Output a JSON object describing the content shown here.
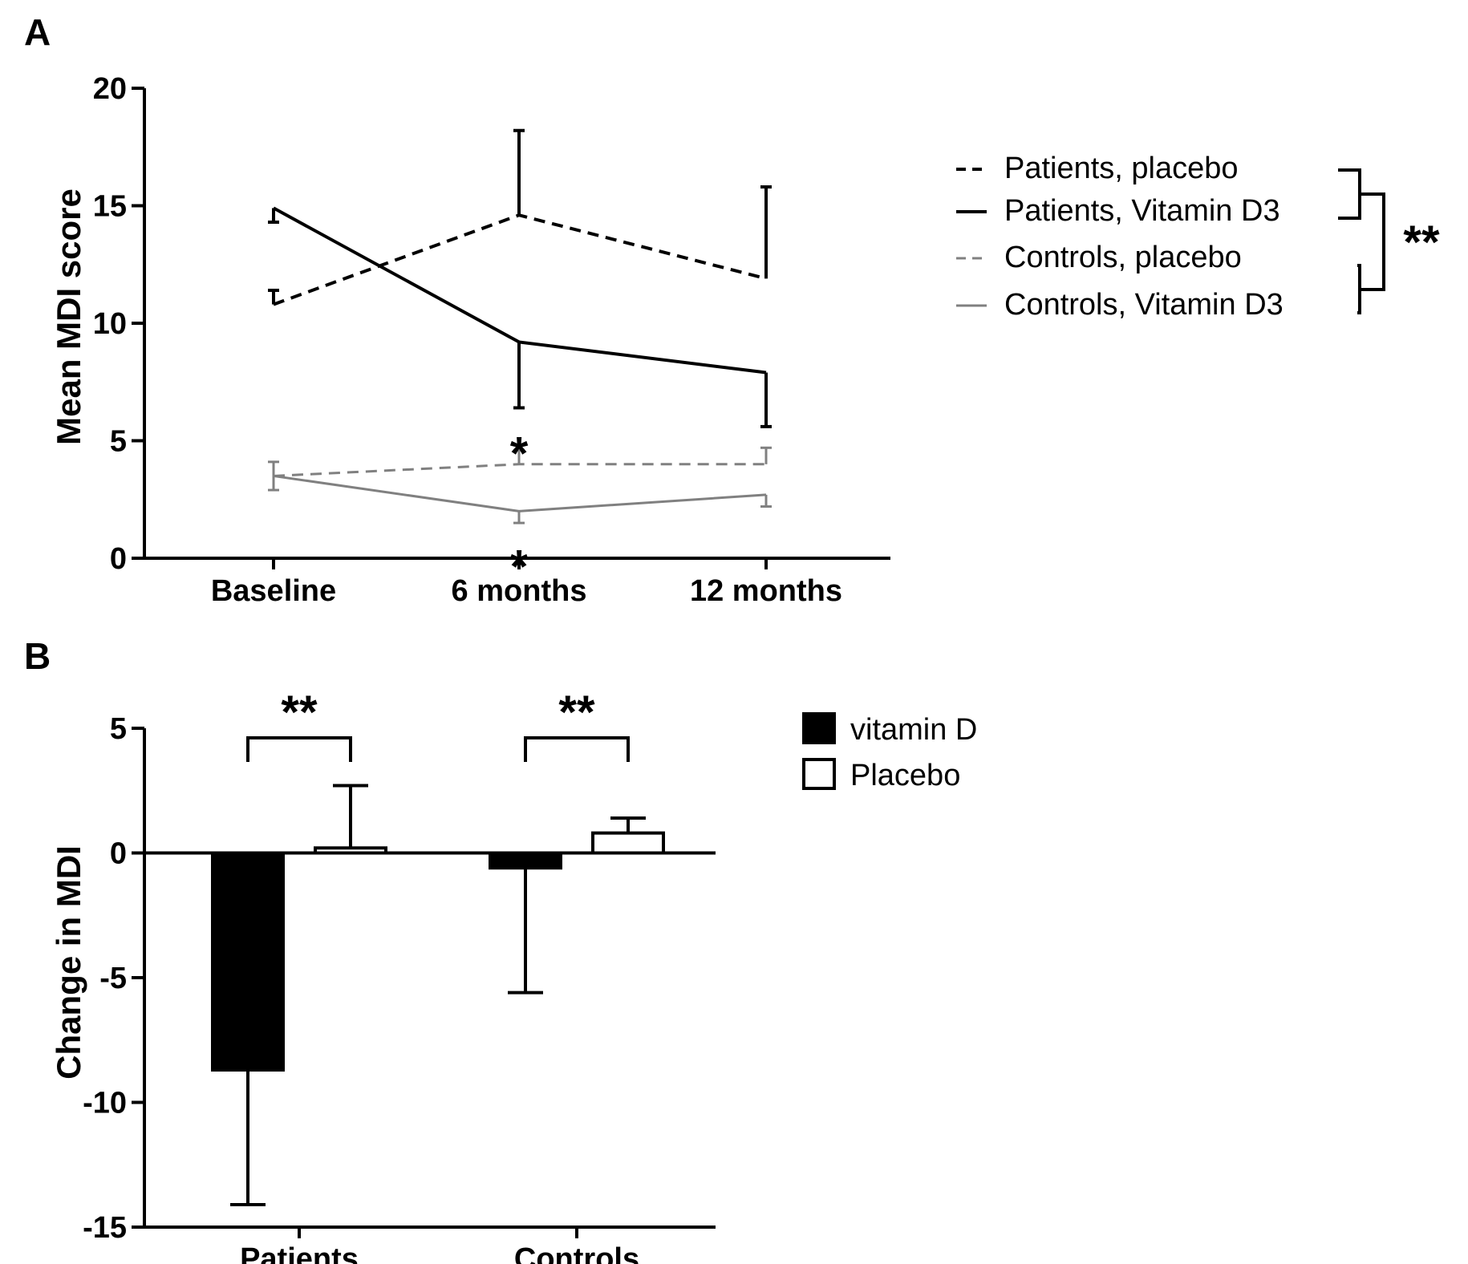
{
  "chart_data": [
    {
      "panel": "A",
      "type": "line",
      "ylabel": "Mean MDI score",
      "xlabel": "",
      "ylim": [
        0,
        20
      ],
      "yticks": [
        0,
        5,
        10,
        15,
        20
      ],
      "categories": [
        "Baseline",
        "6 months",
        "12 months"
      ],
      "series": [
        {
          "name": "Patients, placebo",
          "values": [
            10.8,
            14.6,
            11.9
          ],
          "error_upper": [
            null,
            18.2,
            15.8
          ],
          "error_lower": [
            11.4,
            null,
            null
          ],
          "color": "#000000",
          "style": "dashed"
        },
        {
          "name": "Patients, Vitamin D3",
          "values": [
            14.9,
            9.2,
            7.9
          ],
          "error_upper": [
            14.3,
            null,
            null
          ],
          "error_lower": [
            null,
            6.4,
            5.6
          ],
          "color": "#000000",
          "style": "solid"
        },
        {
          "name": "Controls, placebo",
          "values": [
            3.5,
            4.0,
            4.0
          ],
          "error_upper": [
            4.1,
            4.6,
            4.7
          ],
          "error_lower": [
            null,
            null,
            null
          ],
          "color": "#808080",
          "style": "dashed"
        },
        {
          "name": "Controls, Vitamin D3",
          "values": [
            3.5,
            2.0,
            2.7
          ],
          "error_upper": [
            null,
            null,
            null
          ],
          "error_lower": [
            2.9,
            1.5,
            2.2
          ],
          "color": "#808080",
          "style": "solid"
        }
      ],
      "annotations": [
        {
          "text": "*",
          "category": "6 months",
          "y": 5.2
        },
        {
          "text": "*",
          "category": "6 months",
          "y": 0.4
        },
        {
          "text": "**",
          "note": "legend bracket"
        }
      ],
      "legend": "right"
    },
    {
      "panel": "B",
      "type": "bar",
      "ylabel": "Change in MDI",
      "xlabel": "",
      "ylim": [
        -15,
        5
      ],
      "yticks": [
        5,
        0,
        -5,
        -10,
        -15
      ],
      "categories": [
        "Patients",
        "Controls"
      ],
      "series": [
        {
          "name": "vitamin D",
          "values": [
            -8.7,
            -0.6
          ],
          "error_lower": [
            -14.1,
            -5.6
          ],
          "color": "#000000",
          "fill": "#000000"
        },
        {
          "name": "Placebo",
          "values": [
            0.2,
            0.8
          ],
          "error_upper": [
            2.7,
            1.4
          ],
          "color": "#000000",
          "fill": "#ffffff"
        }
      ],
      "annotations": [
        {
          "text": "**",
          "category": "Patients"
        },
        {
          "text": "**",
          "category": "Controls"
        }
      ],
      "legend": "right"
    }
  ]
}
